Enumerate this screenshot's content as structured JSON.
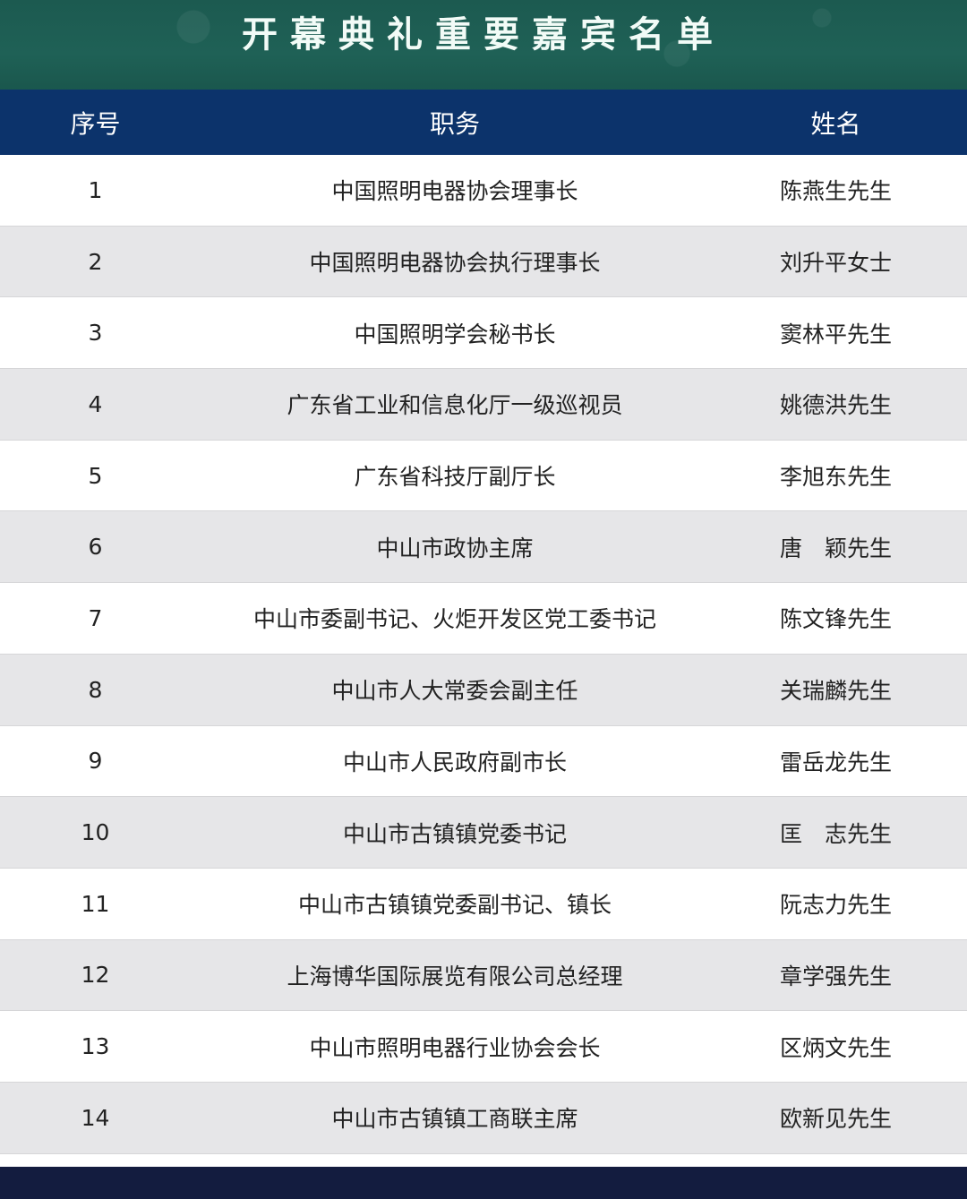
{
  "title": "开幕典礼重要嘉宾名单",
  "headers": [
    "序号",
    "职务",
    "姓名"
  ],
  "rows": [
    {
      "no": "1",
      "position": "中国照明电器协会理事长",
      "name": "陈燕生先生"
    },
    {
      "no": "2",
      "position": "中国照明电器协会执行理事长",
      "name": "刘升平女士"
    },
    {
      "no": "3",
      "position": "中国照明学会秘书长",
      "name": "窦林平先生"
    },
    {
      "no": "4",
      "position": "广东省工业和信息化厅一级巡视员",
      "name": "姚德洪先生"
    },
    {
      "no": "5",
      "position": "广东省科技厅副厅长",
      "name": "李旭东先生"
    },
    {
      "no": "6",
      "position": "中山市政协主席",
      "name": "唐　颖先生"
    },
    {
      "no": "7",
      "position": "中山市委副书记、火炬开发区党工委书记",
      "name": "陈文锋先生"
    },
    {
      "no": "8",
      "position": "中山市人大常委会副主任",
      "name": "关瑞麟先生"
    },
    {
      "no": "9",
      "position": "中山市人民政府副市长",
      "name": "雷岳龙先生"
    },
    {
      "no": "10",
      "position": "中山市古镇镇党委书记",
      "name": "匡　志先生"
    },
    {
      "no": "11",
      "position": "中山市古镇镇党委副书记、镇长",
      "name": "阮志力先生"
    },
    {
      "no": "12",
      "position": "上海博华国际展览有限公司总经理",
      "name": "章学强先生"
    },
    {
      "no": "13",
      "position": "中山市照明电器行业协会会长",
      "name": "区炳文先生"
    },
    {
      "no": "14",
      "position": "中山市古镇镇工商联主席",
      "name": "欧新见先生"
    }
  ],
  "colors": {
    "banner": "#1f6156",
    "header": "#0c336b",
    "stripe": "#e6e6e8",
    "footer": "#131c3f"
  }
}
